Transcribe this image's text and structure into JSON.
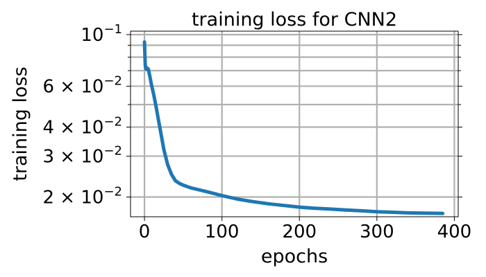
{
  "chart_data": {
    "type": "line",
    "title": "training loss for CNN2",
    "xlabel": "epochs",
    "ylabel": "training loss",
    "xlim": [
      -18,
      405
    ],
    "ylim": [
      0.01645,
      0.1035
    ],
    "yscale": "log",
    "grid": true,
    "x_ticks": [
      {
        "value": 0,
        "label": "0"
      },
      {
        "value": 100,
        "label": "100"
      },
      {
        "value": 200,
        "label": "200"
      },
      {
        "value": 300,
        "label": "300"
      },
      {
        "value": 400,
        "label": "400"
      }
    ],
    "y_ticks": [
      {
        "value": 0.1,
        "mantissa": "10",
        "exponent": "−1"
      },
      {
        "value": 0.06,
        "mantissa": "6 × 10",
        "exponent": "−2"
      },
      {
        "value": 0.04,
        "mantissa": "4 × 10",
        "exponent": "−2"
      },
      {
        "value": 0.03,
        "mantissa": "3 × 10",
        "exponent": "−2"
      },
      {
        "value": 0.02,
        "mantissa": "2 × 10",
        "exponent": "−2"
      }
    ],
    "y_minor_ticks": [
      0.09,
      0.08,
      0.07,
      0.05
    ],
    "series": [
      {
        "color": "#1f77b4",
        "x": [
          0,
          1,
          2,
          3,
          5,
          7,
          9,
          12,
          15,
          18,
          21,
          25,
          30,
          35,
          40,
          45,
          50,
          60,
          70,
          80,
          90,
          100,
          120,
          140,
          160,
          180,
          200,
          220,
          240,
          260,
          280,
          300,
          320,
          340,
          360,
          385
        ],
        "y": [
          0.093,
          0.074,
          0.071,
          0.072,
          0.071,
          0.066,
          0.061,
          0.055,
          0.049,
          0.043,
          0.038,
          0.032,
          0.0275,
          0.025,
          0.0235,
          0.0229,
          0.0225,
          0.0219,
          0.0215,
          0.0211,
          0.0207,
          0.0203,
          0.0196,
          0.0191,
          0.0187,
          0.0184,
          0.0181,
          0.0179,
          0.01775,
          0.0176,
          0.01745,
          0.0173,
          0.0172,
          0.0171,
          0.01705,
          0.017
        ]
      }
    ]
  }
}
